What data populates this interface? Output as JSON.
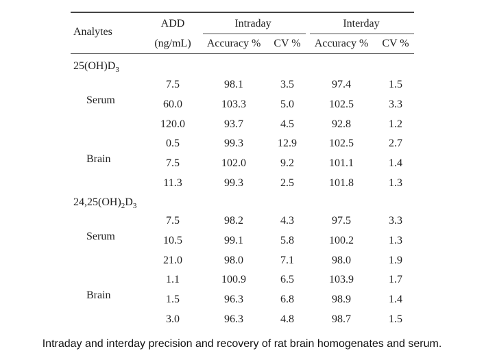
{
  "headers": {
    "analytes": "Analytes",
    "add": "ADD",
    "add_unit": "(ng/mL)",
    "intraday": "Intraday",
    "interday": "Interday",
    "accuracy": "Accuracy %",
    "cv": "CV %"
  },
  "sections": [
    {
      "title": {
        "pre": "25(OH)D",
        "sub1": "3",
        "mid": "",
        "sub2": ""
      },
      "groups": [
        {
          "label": "Serum",
          "rows": [
            [
              "7.5",
              "98.1",
              "3.5",
              "97.4",
              "1.5"
            ],
            [
              "60.0",
              "103.3",
              "5.0",
              "102.5",
              "3.3"
            ],
            [
              "120.0",
              "93.7",
              "4.5",
              "92.8",
              "1.2"
            ]
          ]
        },
        {
          "label": "Brain",
          "rows": [
            [
              "0.5",
              "99.3",
              "12.9",
              "102.5",
              "2.7"
            ],
            [
              "7.5",
              "102.0",
              "9.2",
              "101.1",
              "1.4"
            ],
            [
              "11.3",
              "99.3",
              "2.5",
              "101.8",
              "1.3"
            ]
          ]
        }
      ]
    },
    {
      "title": {
        "pre": "24,25(OH)",
        "sub1": "2",
        "mid": "D",
        "sub2": "3"
      },
      "groups": [
        {
          "label": "Serum",
          "rows": [
            [
              "7.5",
              "98.2",
              "4.3",
              "97.5",
              "3.3"
            ],
            [
              "10.5",
              "99.1",
              "5.8",
              "100.2",
              "1.3"
            ],
            [
              "21.0",
              "98.0",
              "7.1",
              "98.0",
              "1.9"
            ]
          ]
        },
        {
          "label": "Brain",
          "rows": [
            [
              "1.1",
              "100.9",
              "6.5",
              "103.9",
              "1.7"
            ],
            [
              "1.5",
              "96.3",
              "6.8",
              "98.9",
              "1.4"
            ],
            [
              "3.0",
              "96.3",
              "4.8",
              "98.7",
              "1.5"
            ]
          ]
        }
      ]
    }
  ],
  "caption": "Intraday and interday precision and recovery of rat brain homogenates and serum."
}
